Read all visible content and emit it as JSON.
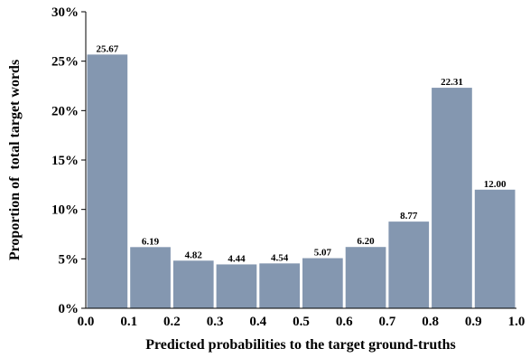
{
  "chart_data": {
    "type": "histogram",
    "xlabel": "Predicted probabilities to the target ground-truths",
    "ylabel": "Proportion of  total target words",
    "bins": [
      0,
      0.1,
      0.2,
      0.3,
      0.4,
      0.5,
      0.6,
      0.7,
      0.8,
      0.9,
      1.0
    ],
    "values": [
      25.67,
      6.19,
      4.82,
      4.44,
      4.54,
      5.07,
      6.2,
      8.77,
      22.31,
      12.0
    ],
    "value_labels": [
      "25.67",
      "6.19",
      "4.82",
      "4.44",
      "4.54",
      "5.07",
      "6.20",
      "8.77",
      "22.31",
      "12.00"
    ],
    "color": "#8497b0",
    "xlim": [
      0,
      1.0
    ],
    "xticks": [
      {
        "value": 0,
        "label": "0.0"
      },
      0.1,
      0.2,
      0.3,
      0.4,
      0.5,
      0.6,
      0.7,
      0.8,
      0.9,
      {
        "value": 1.0,
        "label": "1.0"
      }
    ],
    "ylim": [
      0,
      30
    ],
    "yticks": [
      {
        "value": 0,
        "label": "0%"
      },
      {
        "value": 5,
        "label": "5%"
      },
      {
        "value": 10,
        "label": "10%"
      },
      {
        "value": 15,
        "label": "15%"
      },
      {
        "value": 20,
        "label": "20%"
      },
      {
        "value": 25,
        "label": "25%"
      },
      {
        "value": 30,
        "label": "30%"
      }
    ],
    "grid": false
  }
}
